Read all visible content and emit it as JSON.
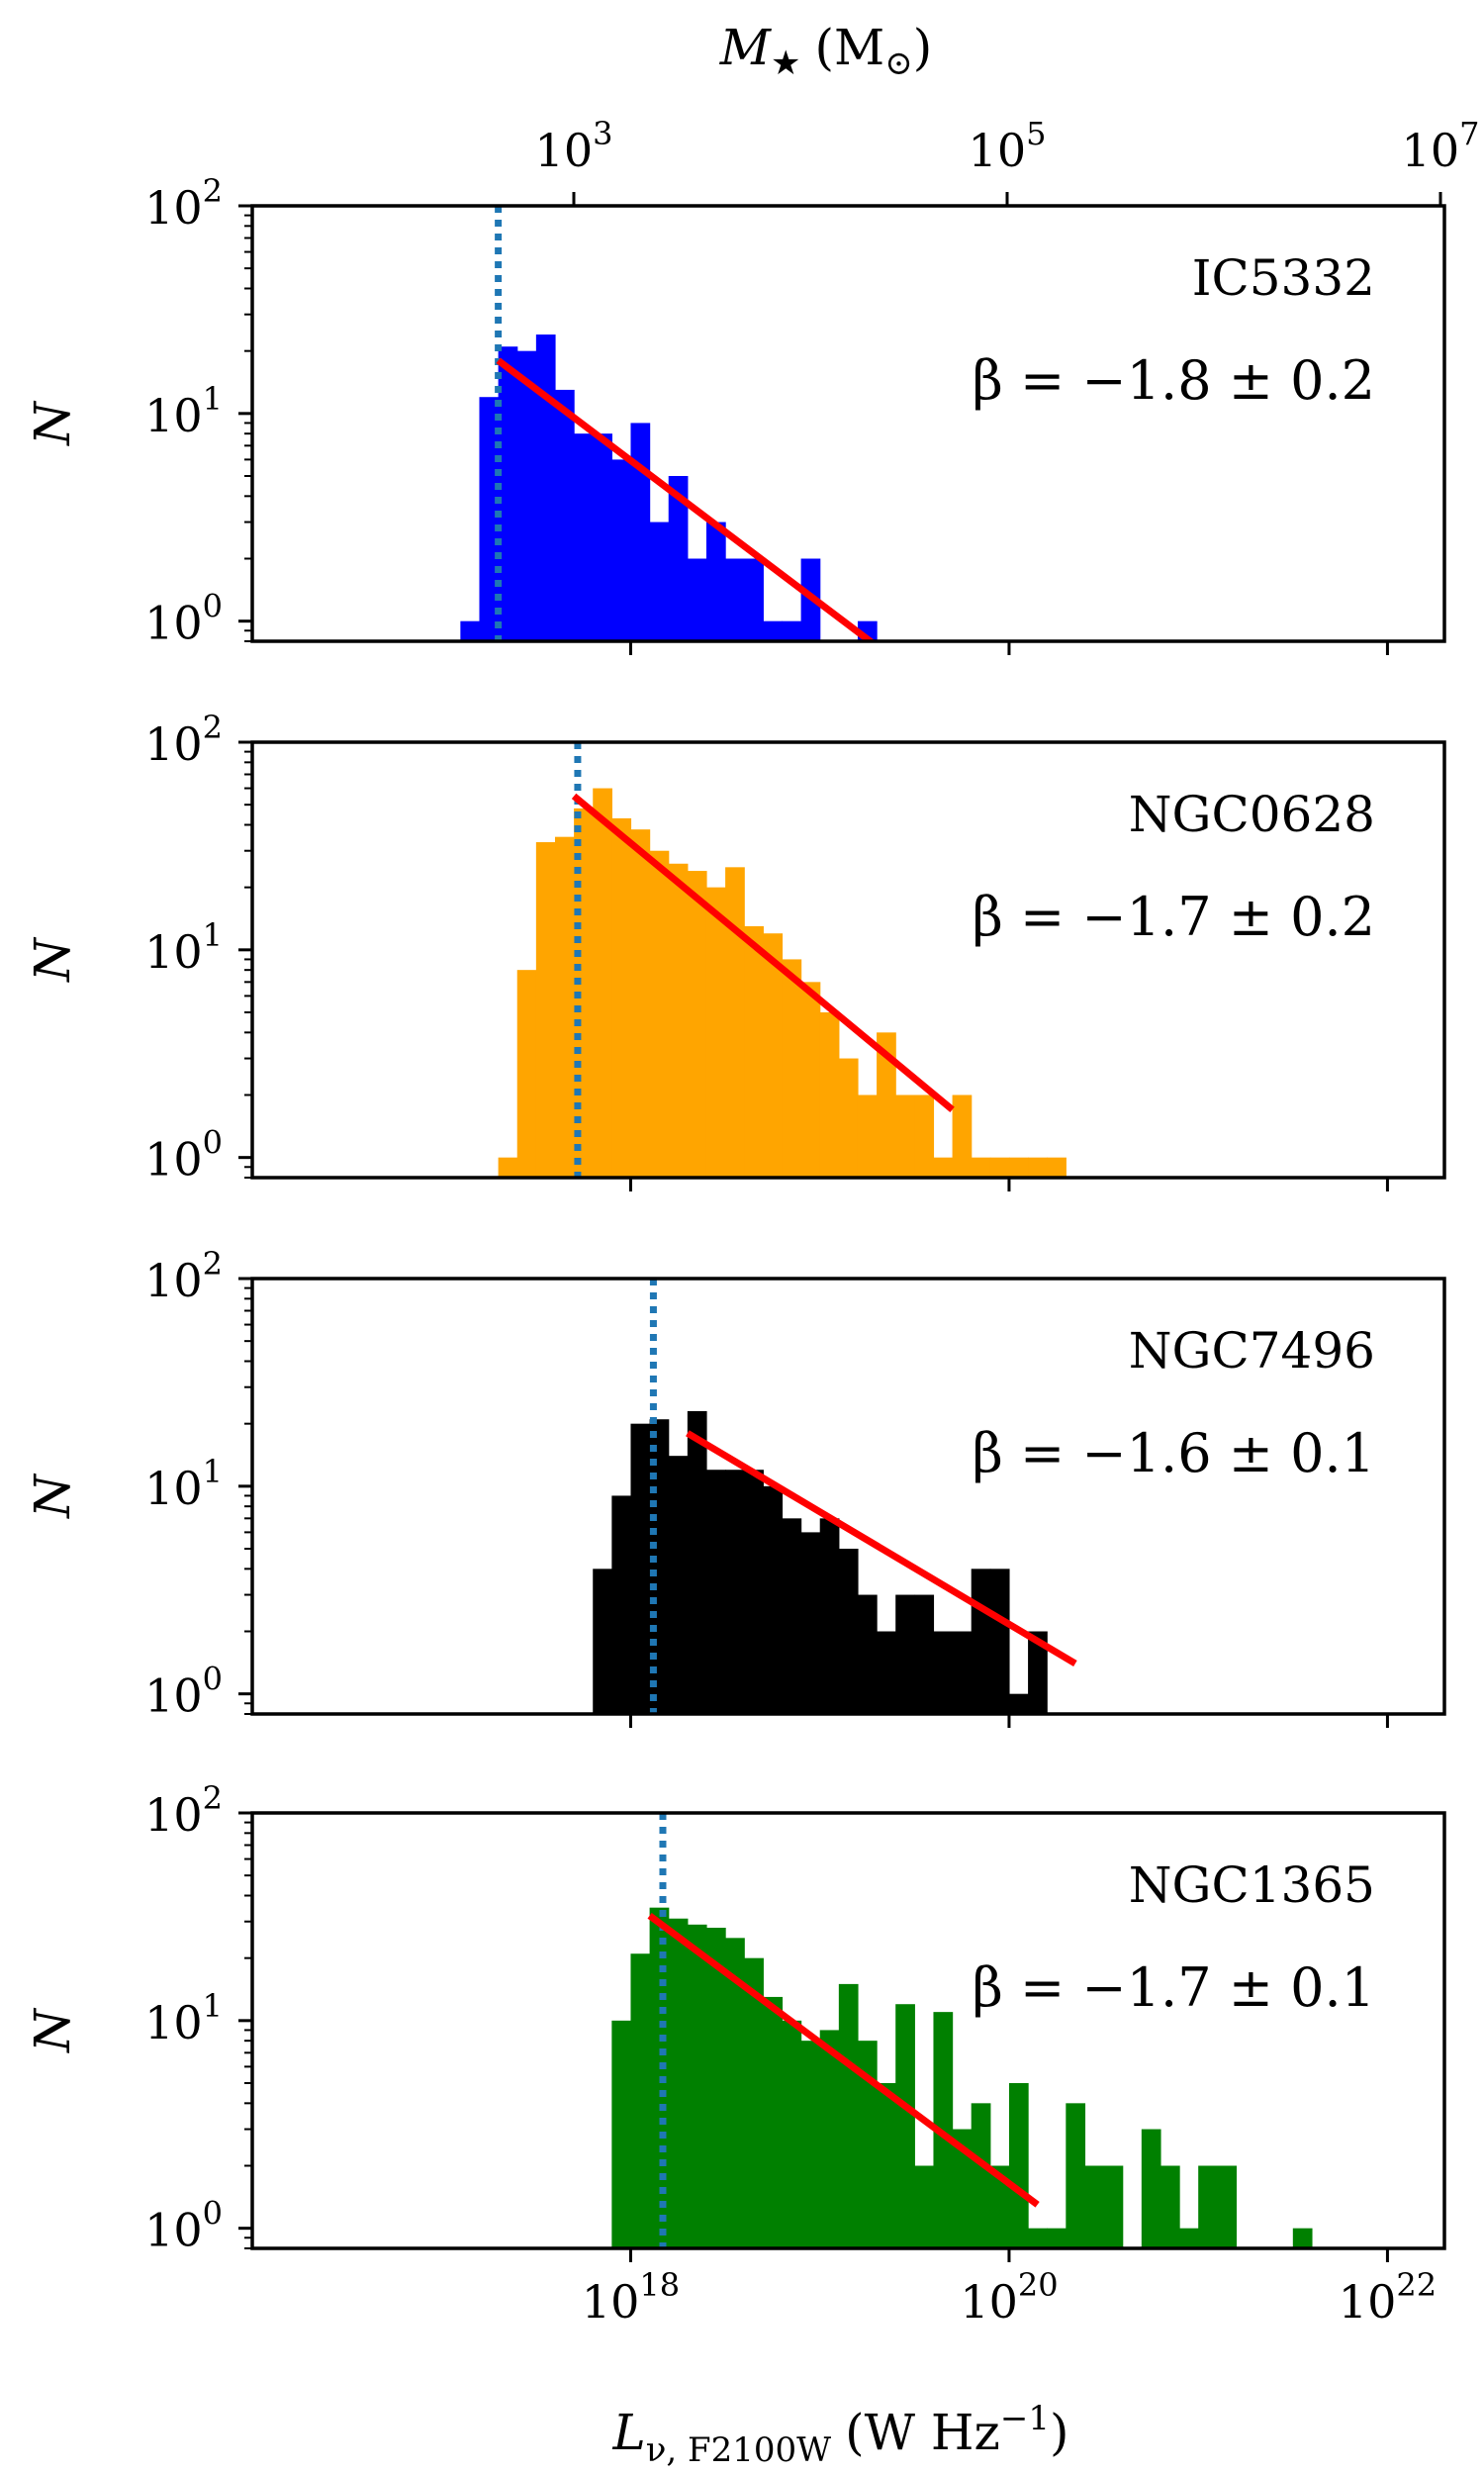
{
  "figure": {
    "top_axis": {
      "label_main": "M",
      "label_sub": "★",
      "label_unit": "(M",
      "label_unit_sub": "⊙",
      "label_close": ")",
      "ticks": [
        {
          "value": 3,
          "base": "10",
          "exp": "3"
        },
        {
          "value": 5,
          "base": "10",
          "exp": "5"
        },
        {
          "value": 7,
          "base": "10",
          "exp": "7"
        }
      ]
    },
    "bottom_axis": {
      "label_main": "L",
      "label_sub": "ν, F2100W",
      "label_unit": "(W Hz",
      "label_unit_exp": "−1",
      "label_close": ")",
      "ticks": [
        {
          "value": 18,
          "base": "10",
          "exp": "18"
        },
        {
          "value": 20,
          "base": "10",
          "exp": "20"
        },
        {
          "value": 22,
          "base": "10",
          "exp": "22"
        }
      ]
    },
    "ylabel": "N",
    "yticks": [
      {
        "value": 0,
        "base": "10",
        "exp": "0"
      },
      {
        "value": 1,
        "base": "10",
        "exp": "1"
      },
      {
        "value": 2,
        "base": "10",
        "exp": "2"
      }
    ]
  },
  "chart_data": [
    {
      "type": "bar",
      "galaxy": "IC5332",
      "beta_text": "β = −1.8 ± 0.2",
      "color": "#0000ff",
      "x_scale": "log",
      "y_scale": "log",
      "xlim": [
        1e+16,
        2e+22
      ],
      "ylim": [
        0.8,
        100
      ],
      "bin_edges_log10L": [
        17.1,
        17.2,
        17.3,
        17.4,
        17.5,
        17.6,
        17.7,
        17.8,
        17.9,
        18.0,
        18.1,
        18.2,
        18.3,
        18.4,
        18.5,
        18.6,
        18.7,
        18.8,
        18.9,
        19.0,
        19.1,
        19.2,
        19.3,
        19.4,
        19.5,
        19.6,
        19.7
      ],
      "counts": [
        1,
        12,
        21,
        20,
        24,
        13,
        8,
        8,
        6,
        9,
        3,
        5,
        2,
        3,
        2,
        2,
        1,
        1,
        2,
        0,
        0,
        1,
        0,
        0,
        0,
        0
      ],
      "completeness_limit_log10L": 17.3,
      "fit_line": {
        "log10L": [
          17.3,
          19.35
        ],
        "N": [
          18,
          0.7
        ]
      }
    },
    {
      "type": "bar",
      "galaxy": "NGC0628",
      "beta_text": "β = −1.7 ± 0.2",
      "color": "#ffa500",
      "x_scale": "log",
      "y_scale": "log",
      "xlim": [
        1e+16,
        2e+22
      ],
      "ylim": [
        0.8,
        100
      ],
      "bin_edges_log10L": [
        17.3,
        17.4,
        17.5,
        17.6,
        17.7,
        17.8,
        17.9,
        18.0,
        18.1,
        18.2,
        18.3,
        18.4,
        18.5,
        18.6,
        18.7,
        18.8,
        18.9,
        19.0,
        19.1,
        19.2,
        19.3,
        19.4,
        19.5,
        19.6,
        19.7,
        19.8,
        19.9,
        20.0,
        20.1,
        20.2,
        20.3,
        20.4
      ],
      "counts": [
        1,
        8,
        33,
        35,
        48,
        60,
        43,
        38,
        30,
        26,
        24,
        20,
        25,
        13,
        12,
        9,
        7,
        5,
        3,
        2,
        4,
        2,
        2,
        1,
        2,
        1,
        1,
        1,
        1,
        1,
        0
      ],
      "completeness_limit_log10L": 17.72,
      "fit_line": {
        "log10L": [
          17.7,
          19.7
        ],
        "N": [
          55,
          1.7
        ]
      }
    },
    {
      "type": "bar",
      "galaxy": "NGC7496",
      "beta_text": "β = −1.6 ± 0.1",
      "color": "#000000",
      "x_scale": "log",
      "y_scale": "log",
      "xlim": [
        1e+16,
        2e+22
      ],
      "ylim": [
        0.8,
        100
      ],
      "bin_edges_log10L": [
        17.8,
        17.9,
        18.0,
        18.1,
        18.2,
        18.3,
        18.4,
        18.5,
        18.6,
        18.7,
        18.8,
        18.9,
        19.0,
        19.1,
        19.2,
        19.3,
        19.4,
        19.5,
        19.6,
        19.7,
        19.8,
        19.9,
        20.0,
        20.1,
        20.2
      ],
      "counts": [
        4,
        9,
        20,
        21,
        14,
        23,
        12,
        12,
        12,
        10,
        7,
        6,
        7,
        5,
        3,
        2,
        3,
        3,
        2,
        2,
        4,
        4,
        1,
        2
      ],
      "completeness_limit_log10L": 18.12,
      "fit_line": {
        "log10L": [
          18.3,
          20.35
        ],
        "N": [
          18,
          1.4
        ]
      }
    },
    {
      "type": "bar",
      "galaxy": "NGC1365",
      "beta_text": "β = −1.7 ± 0.1",
      "color": "#008000",
      "x_scale": "log",
      "y_scale": "log",
      "xlim": [
        1e+16,
        2e+22
      ],
      "ylim": [
        0.8,
        100
      ],
      "bin_edges_log10L": [
        17.9,
        18.0,
        18.1,
        18.2,
        18.3,
        18.4,
        18.5,
        18.6,
        18.7,
        18.8,
        18.9,
        19.0,
        19.1,
        19.2,
        19.3,
        19.4,
        19.5,
        19.6,
        19.7,
        19.8,
        19.9,
        20.0,
        20.1,
        20.2,
        20.3,
        20.4,
        20.5,
        20.6,
        20.7,
        20.8,
        20.9,
        21.0,
        21.1,
        21.2,
        21.3,
        21.4,
        21.5,
        21.6,
        21.7
      ],
      "counts": [
        10,
        21,
        35,
        31,
        29,
        28,
        25,
        20,
        13,
        10,
        8,
        9,
        15,
        8,
        5,
        12,
        2,
        11,
        3,
        4,
        2,
        5,
        1,
        1,
        4,
        2,
        2,
        0,
        3,
        2,
        1,
        2,
        2,
        0,
        0,
        0,
        1,
        0,
        2
      ],
      "completeness_limit_log10L": 18.17,
      "fit_line": {
        "log10L": [
          18.1,
          20.15
        ],
        "N": [
          32,
          1.3
        ]
      }
    }
  ]
}
